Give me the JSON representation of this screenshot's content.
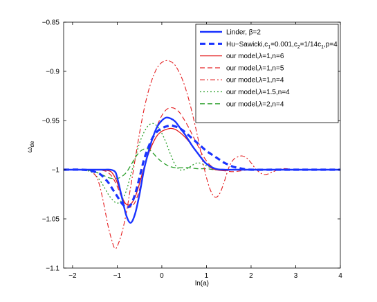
{
  "chart_data": {
    "type": "line",
    "xlabel": "ln(a)",
    "ylabel_main": "ω",
    "ylabel_sub": "de",
    "xlim": [
      -2.2,
      4
    ],
    "ylim": [
      -1.1,
      -0.85
    ],
    "xticks": [
      -2,
      -1,
      0,
      1,
      2,
      3,
      4
    ],
    "xtick_labels": [
      "−2",
      "−1",
      "0",
      "1",
      "2",
      "3",
      "4"
    ],
    "yticks": [
      -1.1,
      -1.05,
      -1,
      -0.95,
      -0.9,
      -0.85
    ],
    "ytick_labels": [
      "−1.1",
      "−1.05",
      "−1",
      "−0.95",
      "−0.9",
      "−0.85"
    ],
    "legend_position": "top-right",
    "series": [
      {
        "name": "Linder, β=2",
        "legend_segments": [
          {
            "text": "Linder, β=2",
            "sub": false
          }
        ],
        "color": "#1a33ff",
        "dash": "solid",
        "width": 2.4,
        "x": [
          -2.2,
          -1.6,
          -1.3,
          -1.15,
          -1.05,
          -1.0,
          -0.9,
          -0.8,
          -0.7,
          -0.6,
          -0.5,
          -0.4,
          -0.3,
          -0.2,
          -0.1,
          0.0,
          0.1,
          0.2,
          0.3,
          0.4,
          0.5,
          0.6,
          0.7,
          0.8,
          0.9,
          1.0,
          1.2,
          1.4,
          1.6,
          2.0,
          2.5,
          3.0,
          4.0
        ],
        "values": [
          -1.0,
          -1.0,
          -1.0,
          -1.0,
          -1.002,
          -1.008,
          -1.027,
          -1.046,
          -1.054,
          -1.045,
          -1.025,
          -1.0,
          -0.982,
          -0.967,
          -0.956,
          -0.95,
          -0.947,
          -0.948,
          -0.951,
          -0.957,
          -0.963,
          -0.97,
          -0.977,
          -0.983,
          -0.989,
          -0.994,
          -0.999,
          -1.0,
          -1.0,
          -1.0,
          -1.0,
          -1.0,
          -1.0
        ]
      },
      {
        "name": "Hu−Sawicki,c1=0.001,c2=1/14c1,p=4",
        "legend_segments": [
          {
            "text": "Hu−Sawicki,c",
            "sub": false
          },
          {
            "text": "1",
            "sub": true
          },
          {
            "text": "=0.001,c",
            "sub": false
          },
          {
            "text": "2",
            "sub": true
          },
          {
            "text": "=1/14c",
            "sub": false
          },
          {
            "text": "1",
            "sub": true
          },
          {
            "text": ",p=4",
            "sub": false
          }
        ],
        "color": "#1a33ff",
        "dash": "8,5",
        "width": 3.2,
        "x": [
          -2.2,
          -1.8,
          -1.6,
          -1.4,
          -1.3,
          -1.2,
          -1.1,
          -1.0,
          -0.9,
          -0.8,
          -0.7,
          -0.6,
          -0.5,
          -0.4,
          -0.3,
          -0.2,
          -0.1,
          0.0,
          0.1,
          0.2,
          0.3,
          0.4,
          0.5,
          0.6,
          0.7,
          0.8,
          0.9,
          1.0,
          1.1,
          1.2,
          1.3,
          1.4,
          1.5,
          1.6,
          1.7,
          1.8,
          2.0,
          2.5,
          3.0,
          4.0
        ],
        "values": [
          -1.0,
          -1.0,
          -1.001,
          -1.004,
          -1.008,
          -1.013,
          -1.02,
          -1.027,
          -1.034,
          -1.038,
          -1.036,
          -1.025,
          -1.008,
          -0.99,
          -0.977,
          -0.967,
          -0.961,
          -0.958,
          -0.956,
          -0.955,
          -0.956,
          -0.958,
          -0.961,
          -0.965,
          -0.969,
          -0.973,
          -0.977,
          -0.981,
          -0.984,
          -0.987,
          -0.99,
          -0.993,
          -0.995,
          -0.997,
          -0.998,
          -0.999,
          -1.0,
          -1.0,
          -1.0,
          -1.0
        ]
      },
      {
        "name": "our model,λ=1,n=6",
        "legend_segments": [
          {
            "text": "our model,λ=1,n=6",
            "sub": false
          }
        ],
        "color": "#e41a1c",
        "dash": "solid",
        "width": 1.3,
        "x": [
          -2.2,
          -1.5,
          -1.2,
          -1.1,
          -1.0,
          -0.9,
          -0.8,
          -0.7,
          -0.6,
          -0.5,
          -0.4,
          -0.3,
          -0.2,
          -0.1,
          0.0,
          0.1,
          0.2,
          0.3,
          0.4,
          0.5,
          0.6,
          0.7,
          0.8,
          0.9,
          1.0,
          1.1,
          1.2,
          1.4,
          1.6,
          2.0,
          2.5,
          3.0,
          4.0
        ],
        "values": [
          -1.0,
          -1.0,
          -1.001,
          -1.004,
          -1.013,
          -1.027,
          -1.035,
          -1.035,
          -1.028,
          -1.014,
          -0.998,
          -0.984,
          -0.973,
          -0.965,
          -0.961,
          -0.959,
          -0.958,
          -0.959,
          -0.962,
          -0.966,
          -0.971,
          -0.977,
          -0.983,
          -0.989,
          -0.994,
          -0.998,
          -1.0,
          -1.001,
          -1.0,
          -1.0,
          -1.0,
          -1.0,
          -1.0
        ]
      },
      {
        "name": "our model,λ=1,n=5",
        "legend_segments": [
          {
            "text": "our model,λ=1,n=5",
            "sub": false
          }
        ],
        "color": "#e41a1c",
        "dash": "7,4",
        "width": 1.1,
        "x": [
          -2.2,
          -1.5,
          -1.3,
          -1.2,
          -1.1,
          -1.0,
          -0.9,
          -0.8,
          -0.7,
          -0.6,
          -0.5,
          -0.4,
          -0.3,
          -0.2,
          -0.1,
          0.0,
          0.1,
          0.2,
          0.3,
          0.4,
          0.5,
          0.6,
          0.7,
          0.8,
          0.9,
          1.0,
          1.1,
          1.2,
          1.3,
          1.4,
          1.6,
          1.8,
          2.0,
          2.5,
          3.0,
          4.0
        ],
        "values": [
          -1.0,
          -1.0,
          -1.001,
          -1.003,
          -1.008,
          -1.017,
          -1.028,
          -1.036,
          -1.038,
          -1.033,
          -1.02,
          -1.0,
          -0.983,
          -0.968,
          -0.955,
          -0.945,
          -0.939,
          -0.937,
          -0.938,
          -0.942,
          -0.949,
          -0.957,
          -0.966,
          -0.975,
          -0.984,
          -0.991,
          -0.996,
          -0.999,
          -1.0,
          -1.001,
          -1.002,
          -1.001,
          -1.0,
          -1.0,
          -1.0,
          -1.0
        ]
      },
      {
        "name": "our model,λ=1,n=4",
        "legend_segments": [
          {
            "text": "our model,λ=1,n=4",
            "sub": false
          }
        ],
        "color": "#e41a1c",
        "dash": "7,3,2,3",
        "width": 1.1,
        "x": [
          -2.2,
          -1.7,
          -1.5,
          -1.4,
          -1.3,
          -1.2,
          -1.1,
          -1.05,
          -1.0,
          -0.9,
          -0.8,
          -0.7,
          -0.6,
          -0.5,
          -0.4,
          -0.3,
          -0.2,
          -0.1,
          0.0,
          0.1,
          0.2,
          0.3,
          0.4,
          0.5,
          0.6,
          0.7,
          0.8,
          0.9,
          1.0,
          1.1,
          1.2,
          1.3,
          1.4,
          1.5,
          1.6,
          1.7,
          1.8,
          1.9,
          2.0,
          2.1,
          2.2,
          2.3,
          2.4,
          2.5,
          2.6,
          2.7,
          2.8,
          2.9,
          3.0,
          3.2,
          4.0
        ],
        "values": [
          -1.0,
          -1.0,
          -1.005,
          -1.015,
          -1.035,
          -1.058,
          -1.075,
          -1.08,
          -1.078,
          -1.065,
          -1.045,
          -1.018,
          -0.99,
          -0.963,
          -0.939,
          -0.92,
          -0.906,
          -0.896,
          -0.891,
          -0.889,
          -0.89,
          -0.894,
          -0.902,
          -0.913,
          -0.928,
          -0.946,
          -0.966,
          -0.988,
          -1.008,
          -1.022,
          -1.028,
          -1.024,
          -1.012,
          -0.998,
          -0.99,
          -0.987,
          -0.986,
          -0.988,
          -0.993,
          -0.999,
          -1.003,
          -1.005,
          -1.004,
          -1.002,
          -1.0,
          -0.999,
          -0.999,
          -1.0,
          -1.0,
          -1.0,
          -1.0
        ]
      },
      {
        "name": "our model,λ=1.5,n=4",
        "legend_segments": [
          {
            "text": "our model,λ=1.5,n=4",
            "sub": false
          }
        ],
        "color": "#2ca02c",
        "dash": "2,3",
        "width": 1.3,
        "x": [
          -2.2,
          -1.8,
          -1.6,
          -1.5,
          -1.4,
          -1.3,
          -1.2,
          -1.1,
          -1.0,
          -0.9,
          -0.8,
          -0.7,
          -0.6,
          -0.5,
          -0.4,
          -0.3,
          -0.2,
          -0.1,
          0.0,
          0.1,
          0.2,
          0.3,
          0.4,
          0.5,
          0.6,
          0.7,
          0.8,
          0.9,
          1.0,
          1.1,
          1.2,
          1.3,
          1.4,
          1.5,
          1.7,
          2.0,
          2.5,
          3.0,
          4.0
        ],
        "values": [
          -1.0,
          -1.0,
          -1.002,
          -1.005,
          -1.01,
          -1.017,
          -1.025,
          -1.031,
          -1.034,
          -1.031,
          -1.022,
          -1.006,
          -0.989,
          -0.973,
          -0.962,
          -0.955,
          -0.953,
          -0.956,
          -0.963,
          -0.973,
          -0.985,
          -0.995,
          -1.0,
          -1.0,
          -0.998,
          -0.995,
          -0.993,
          -0.994,
          -0.996,
          -0.998,
          -1.0,
          -1.0,
          -1.0,
          -1.0,
          -1.0,
          -1.0,
          -1.0,
          -1.0,
          -1.0
        ]
      },
      {
        "name": "our model,λ=2,n=4",
        "legend_segments": [
          {
            "text": "our model,λ=2,n=4",
            "sub": false
          }
        ],
        "color": "#2ca02c",
        "dash": "7,4",
        "width": 1.3,
        "x": [
          -2.2,
          -1.8,
          -1.6,
          -1.5,
          -1.4,
          -1.3,
          -1.2,
          -1.1,
          -1.0,
          -0.9,
          -0.8,
          -0.7,
          -0.6,
          -0.5,
          -0.4,
          -0.3,
          -0.2,
          -0.1,
          0.0,
          0.1,
          0.2,
          0.3,
          0.4,
          0.6,
          0.8,
          1.0,
          1.2,
          1.5,
          2.0,
          2.5,
          3.0,
          4.0
        ],
        "values": [
          -1.0,
          -1.0,
          -1.001,
          -1.002,
          -1.004,
          -1.006,
          -1.008,
          -1.009,
          -1.009,
          -1.007,
          -1.003,
          -0.996,
          -0.988,
          -0.982,
          -0.979,
          -0.979,
          -0.983,
          -0.988,
          -0.992,
          -0.995,
          -0.997,
          -0.998,
          -0.998,
          -0.998,
          -0.999,
          -0.999,
          -1.0,
          -1.0,
          -1.0,
          -1.0,
          -1.0,
          -1.0
        ]
      }
    ]
  }
}
